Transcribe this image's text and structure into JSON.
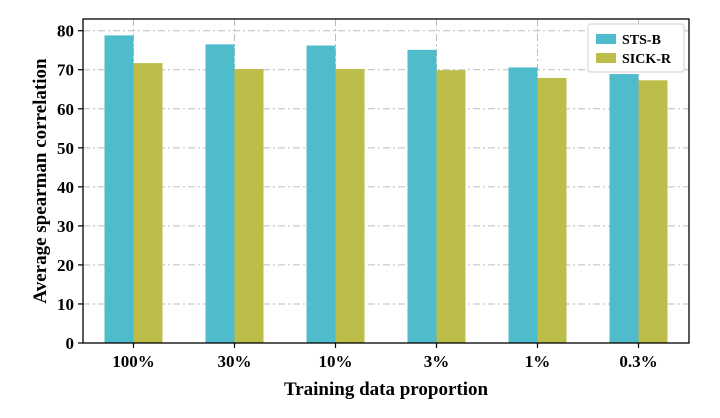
{
  "chart_data": {
    "type": "bar",
    "title": "",
    "xlabel": "Training data proportion",
    "ylabel": "Average spearman correlation",
    "categories": [
      "100%",
      "30%",
      "10%",
      "3%",
      "1%",
      "0.3%"
    ],
    "series": [
      {
        "name": "STS-B",
        "color": "#4fbccc",
        "values": [
          78.8,
          76.5,
          76.2,
          75.1,
          70.6,
          68.9
        ]
      },
      {
        "name": "SICK-R",
        "color": "#bdbd4a",
        "values": [
          71.7,
          70.2,
          70.2,
          69.9,
          67.9,
          67.3
        ]
      }
    ],
    "ylim": [
      0,
      83
    ],
    "yticks": [
      "0",
      "10",
      "20",
      "30",
      "40",
      "50",
      "60",
      "70",
      "80"
    ],
    "grid": true,
    "legend_position": "top-right"
  }
}
